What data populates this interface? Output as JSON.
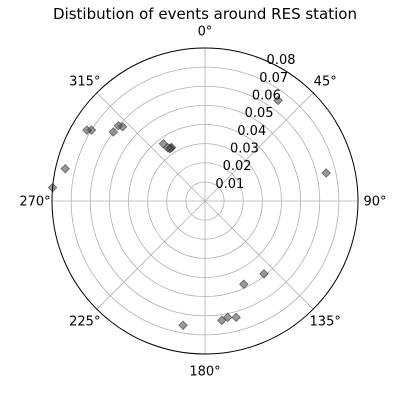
{
  "chart_data": {
    "type": "scatter",
    "projection": "polar",
    "title": "Distibution of events around RES station",
    "theta_direction": "clockwise",
    "theta_zero": "north",
    "theta_ticks": [
      "0°",
      "45°",
      "90°",
      "135°",
      "180°",
      "225°",
      "270°",
      "315°"
    ],
    "theta_tick_values": [
      0,
      45,
      90,
      135,
      180,
      225,
      270,
      315
    ],
    "r_ticks": [
      "0.01",
      "0.02",
      "0.03",
      "0.04",
      "0.05",
      "0.06",
      "0.07",
      "0.08"
    ],
    "r_tick_values": [
      0.01,
      0.02,
      0.03,
      0.04,
      0.05,
      0.06,
      0.07,
      0.08
    ],
    "rlim": [
      0,
      0.08
    ],
    "grid": true,
    "series": [
      {
        "marker": "diamond",
        "color": "#555555",
        "opacity": 0.6,
        "points": [
          {
            "theta": 36,
            "r": 0.065
          },
          {
            "theta": 77,
            "r": 0.065
          },
          {
            "theta": 328,
            "r": 0.033
          },
          {
            "theta": 327,
            "r": 0.033
          },
          {
            "theta": 326,
            "r": 0.033
          },
          {
            "theta": 325,
            "r": 0.034
          },
          {
            "theta": 324,
            "r": 0.037
          },
          {
            "theta": 312,
            "r": 0.058
          },
          {
            "theta": 311,
            "r": 0.06
          },
          {
            "theta": 307,
            "r": 0.06
          },
          {
            "theta": 302,
            "r": 0.07
          },
          {
            "theta": 301,
            "r": 0.072
          },
          {
            "theta": 283,
            "r": 0.075
          },
          {
            "theta": 275,
            "r": 0.08
          },
          {
            "theta": 141,
            "r": 0.049
          },
          {
            "theta": 155,
            "r": 0.048
          },
          {
            "theta": 165,
            "r": 0.063
          },
          {
            "theta": 169,
            "r": 0.062
          },
          {
            "theta": 172,
            "r": 0.063
          },
          {
            "theta": 190,
            "r": 0.066
          }
        ]
      }
    ]
  }
}
